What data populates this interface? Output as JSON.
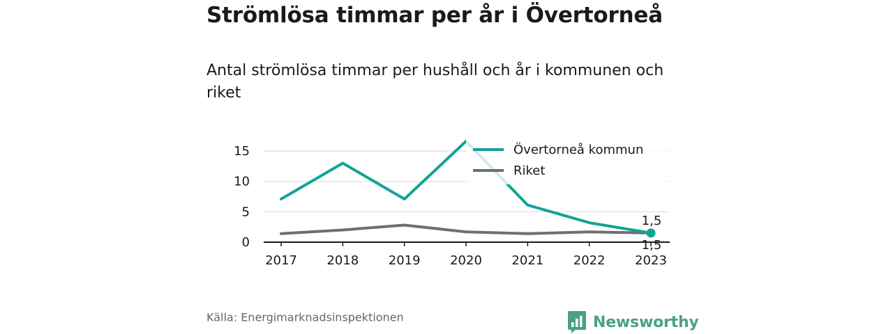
{
  "title": "Strömlösa timmar per år i Övertorneå",
  "subtitle": "Antal strömlösa timmar per hushåll och år i kommunen och riket",
  "source": "Källa: Energimarknadsinspektionen",
  "brand": {
    "name": "Newsworthy",
    "color": "#4aa08a",
    "icon": "bar-chart-speech-bubble-icon"
  },
  "colors": {
    "text": "#1a1a1a",
    "grid": "#dddddd",
    "axis": "#1a1a1a",
    "legend_bg": "#ffffff"
  },
  "chart_data": {
    "type": "line",
    "x": [
      "2017",
      "2018",
      "2019",
      "2020",
      "2021",
      "2022",
      "2023"
    ],
    "y_ticks": [
      0,
      5,
      10,
      15
    ],
    "ylim": [
      0,
      17
    ],
    "grid": true,
    "legend_position": "top-right",
    "series": [
      {
        "name": "Övertorneå kommun",
        "color": "#11a396",
        "values": [
          7.1,
          13.0,
          7.1,
          16.6,
          6.1,
          3.2,
          1.5
        ],
        "end_label": "1,5"
      },
      {
        "name": "Riket",
        "color": "#6e6e73",
        "values": [
          1.4,
          2.0,
          2.8,
          1.7,
          1.4,
          1.7,
          1.5
        ],
        "end_label": "1,5"
      }
    ]
  }
}
